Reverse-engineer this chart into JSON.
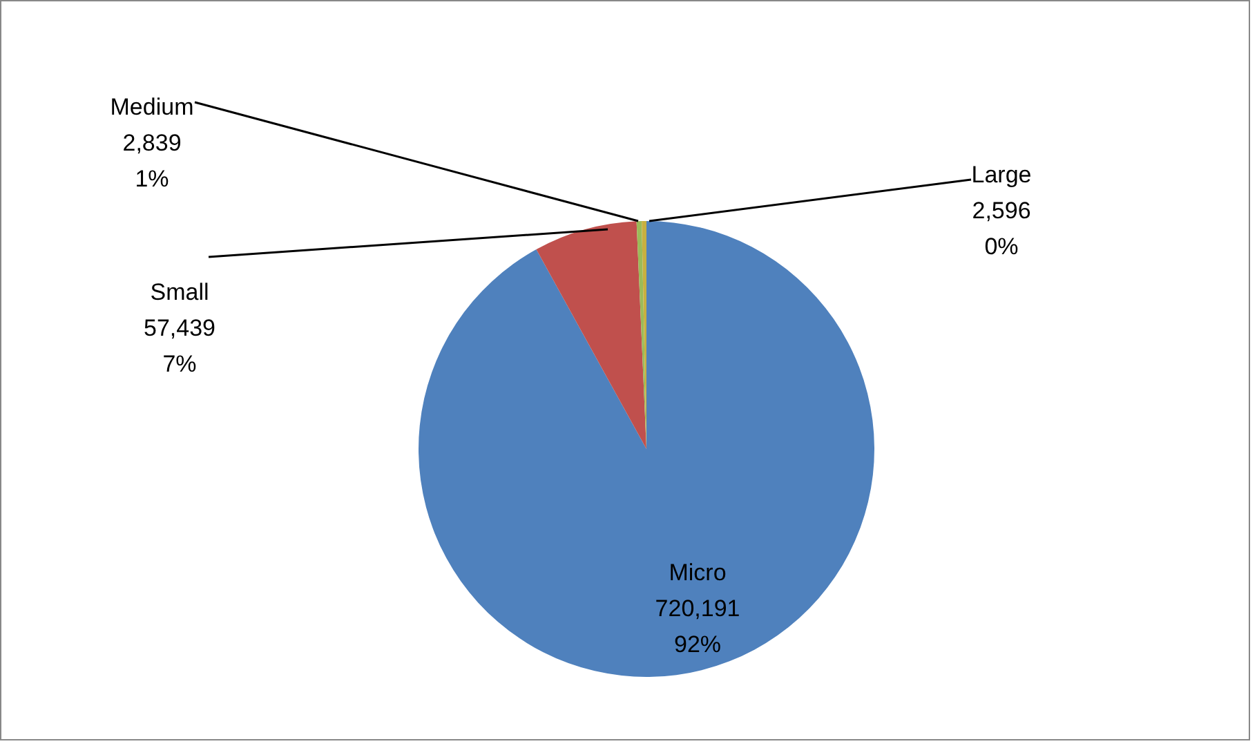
{
  "chart_data": {
    "type": "pie",
    "categories": [
      "Micro",
      "Small",
      "Medium",
      "Large"
    ],
    "values": [
      720191,
      57439,
      2839,
      2596
    ],
    "colors": [
      "#4f81bd",
      "#c0504d",
      "#9bbb59",
      "#c8b040"
    ],
    "value_labels": [
      "720,191\n92%",
      "57,439\n7%",
      "2,839\n1%",
      "2,596\n0%"
    ]
  }
}
